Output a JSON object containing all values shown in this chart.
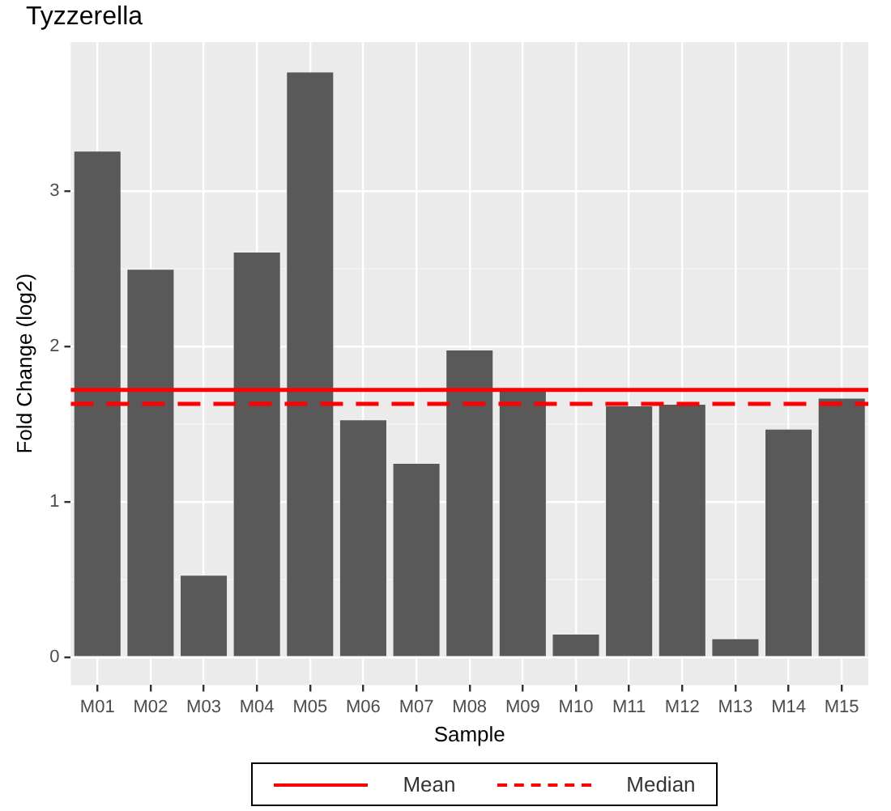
{
  "chart_data": {
    "type": "bar",
    "title": "Tyzzerella",
    "xlabel": "Sample",
    "ylabel": "Fold Change (log2)",
    "categories": [
      "M01",
      "M02",
      "M03",
      "M04",
      "M05",
      "M06",
      "M07",
      "M08",
      "M09",
      "M10",
      "M11",
      "M12",
      "M13",
      "M14",
      "M15"
    ],
    "values": [
      3.26,
      2.5,
      0.53,
      2.61,
      3.77,
      1.53,
      1.25,
      1.98,
      1.73,
      0.15,
      1.62,
      1.63,
      0.12,
      1.47,
      1.67
    ],
    "color": "#595959",
    "ylim": [
      -0.18,
      3.96
    ],
    "yticks": [
      0,
      1,
      2,
      3
    ],
    "grid": true,
    "legend": "bottom",
    "ref_lines": [
      {
        "axis": "y",
        "value": 1.72,
        "label": "Mean",
        "color": "#ff0000",
        "line_style": "solid"
      },
      {
        "axis": "y",
        "value": 1.63,
        "label": "Median",
        "color": "#ff0000",
        "line_style": "dashed"
      }
    ]
  }
}
